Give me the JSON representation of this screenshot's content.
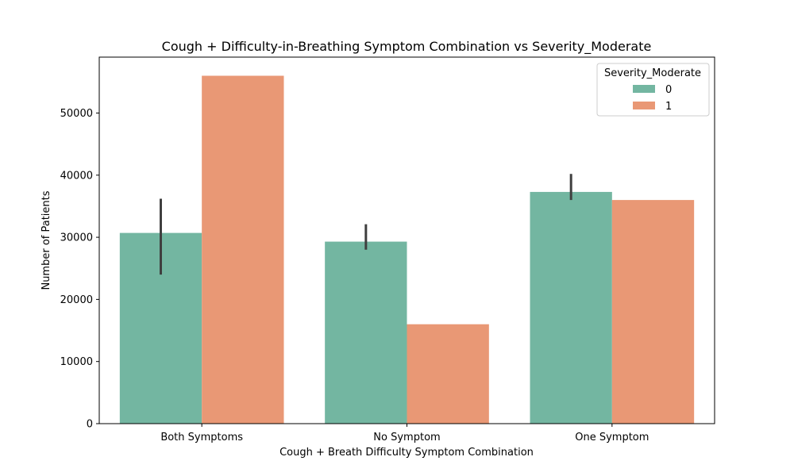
{
  "chart_data": {
    "type": "bar",
    "title": "Cough + Difficulty-in-Breathing Symptom Combination vs Severity_Moderate",
    "xlabel": "Cough + Breath Difficulty Symptom Combination",
    "ylabel": "Number of Patients",
    "categories": [
      "Both Symptoms",
      "No Symptom",
      "One Symptom"
    ],
    "ylim": [
      0,
      59000
    ],
    "yticks": [
      0,
      10000,
      20000,
      30000,
      40000,
      50000
    ],
    "grid": false,
    "legend": {
      "title": "Severity_Moderate",
      "placement": "top-right"
    },
    "series": [
      {
        "name": "0",
        "color": "#73b6a1",
        "values": [
          30700,
          29300,
          37300
        ],
        "error_low": [
          24000,
          28000,
          36000
        ],
        "error_high": [
          36200,
          32100,
          40200
        ]
      },
      {
        "name": "1",
        "color": "#e99875",
        "values": [
          56000,
          16000,
          36000
        ]
      }
    ]
  }
}
